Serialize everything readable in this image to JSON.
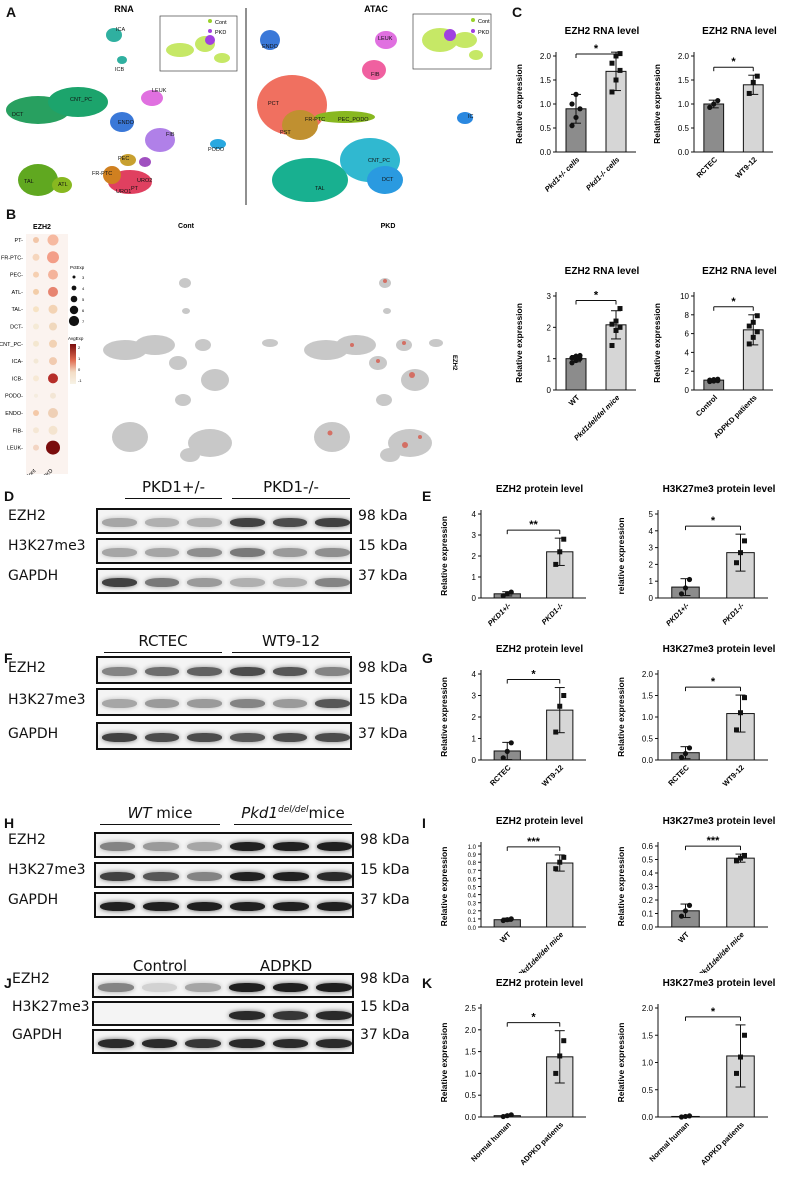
{
  "panels": {
    "A": {
      "letter": "A",
      "rna_title": "RNA",
      "atac_title": "ATAC",
      "legend": [
        "Cont",
        "PKD"
      ],
      "rna_clusters": [
        "ICA",
        "ICB",
        "DCT",
        "CNT_PC",
        "LEUK",
        "ENDO",
        "FIB",
        "PODO",
        "PEC",
        "URO1",
        "URO2",
        "FR-PTC",
        "PT",
        "TAL",
        "ATL"
      ],
      "atac_clusters": [
        "ENDO",
        "LEUK",
        "FIB",
        "PCT",
        "FR-PTC",
        "PST",
        "PEC_PODO",
        "IC",
        "CNT_PC",
        "TAL",
        "DCT"
      ]
    },
    "B": {
      "letter": "B",
      "gene": "EZH2",
      "rows": [
        "PT",
        "FR-PTC",
        "PEC",
        "ATL",
        "TAL",
        "DCT",
        "CNT_PC",
        "ICA",
        "ICB",
        "PODO",
        "ENDO",
        "FIB",
        "LEUK"
      ],
      "cols": [
        "Cont",
        "PKD"
      ],
      "pct_legend_title": "PctExp",
      "pct_ticks": [
        "3",
        "4",
        "5",
        "6",
        "7"
      ],
      "avg_legend_title": "AvgExp",
      "avg_ticks": [
        "2",
        "1",
        "0",
        "-1"
      ],
      "umap_cont": "Cont",
      "umap_pkd": "PKD",
      "umap_side": "EZH2"
    },
    "C": {
      "letter": "C"
    },
    "D": {
      "letter": "D",
      "groups": [
        "PKD1+/-",
        "PKD1-/-"
      ],
      "rows": [
        "EZH2",
        "H3K27me3",
        "GAPDH"
      ],
      "kda": [
        "98 kDa",
        "15 kDa",
        "37 kDa"
      ]
    },
    "E": {
      "letter": "E"
    },
    "F": {
      "letter": "F",
      "groups": [
        "RCTEC",
        "WT9-12"
      ],
      "rows": [
        "EZH2",
        "H3K27me3",
        "GAPDH"
      ],
      "kda": [
        "98 kDa",
        "15 kDa",
        "37 kDa"
      ]
    },
    "G": {
      "letter": "G"
    },
    "H": {
      "letter": "H",
      "groups": [
        "WT mice",
        "Pkd1del/delmice"
      ],
      "rows": [
        "EZH2",
        "H3K27me3",
        "GAPDH"
      ],
      "kda": [
        "98 kDa",
        "15 kDa",
        "37 kDa"
      ]
    },
    "I": {
      "letter": "I"
    },
    "J": {
      "letter": "J",
      "groups": [
        "Control",
        "ADPKD"
      ],
      "rows": [
        "EZH2",
        "H3K27me3",
        "GAPDH"
      ],
      "kda": [
        "98 kDa",
        "15 kDa",
        "37 kDa"
      ]
    },
    "K": {
      "letter": "K"
    }
  },
  "chart_data": [
    {
      "id": "C1",
      "type": "bar",
      "title": "EZH2 RNA level",
      "ylabel": "Relative expression",
      "ylim": [
        0,
        2.0
      ],
      "yticks": [
        0.0,
        0.5,
        1.0,
        1.5,
        2.0
      ],
      "categories": [
        "Pkd1+/- cells",
        "Pkd1-/- cells"
      ],
      "values": [
        0.9,
        1.68
      ],
      "errors": [
        0.3,
        0.4
      ],
      "points": [
        [
          0.55,
          0.72,
          0.9,
          1.0,
          1.2
        ],
        [
          1.25,
          1.5,
          1.7,
          1.85,
          2.0,
          2.05
        ]
      ],
      "significance": "*",
      "colors": [
        "#8c8c8c",
        "#d6d6d6"
      ]
    },
    {
      "id": "C2",
      "type": "bar",
      "title": "EZH2 RNA level",
      "ylabel": "Relative expression",
      "ylim": [
        0,
        2.0
      ],
      "yticks": [
        0.0,
        0.5,
        1.0,
        1.5,
        2.0
      ],
      "categories": [
        "RCTEC",
        "WT9-12"
      ],
      "values": [
        1.0,
        1.4
      ],
      "errors": [
        0.08,
        0.2
      ],
      "points": [
        [
          0.93,
          1.0,
          1.07
        ],
        [
          1.22,
          1.45,
          1.58
        ]
      ],
      "significance": "*",
      "colors": [
        "#8c8c8c",
        "#d6d6d6"
      ]
    },
    {
      "id": "C3",
      "type": "bar",
      "title": "EZH2 RNA level",
      "ylabel": "Relative expression",
      "ylim": [
        0,
        3
      ],
      "yticks": [
        0,
        1,
        2,
        3
      ],
      "categories": [
        "WT",
        "Pkd1del/del mice"
      ],
      "values": [
        1.0,
        2.08
      ],
      "errors": [
        0.1,
        0.45
      ],
      "points": [
        [
          0.87,
          0.94,
          1.0,
          1.03,
          1.08,
          1.1
        ],
        [
          1.42,
          1.9,
          2.0,
          2.1,
          2.2,
          2.6
        ]
      ],
      "significance": "*",
      "colors": [
        "#8c8c8c",
        "#d6d6d6"
      ]
    },
    {
      "id": "C4",
      "type": "bar",
      "title": "EZH2 RNA level",
      "ylabel": "Relative expression",
      "ylim": [
        0,
        10
      ],
      "yticks": [
        0,
        2,
        4,
        6,
        8,
        10
      ],
      "categories": [
        "Control",
        "ADPKD patients"
      ],
      "values": [
        1.05,
        6.4
      ],
      "errors": [
        0.12,
        1.6
      ],
      "points": [
        [
          0.9,
          0.95,
          1.0,
          1.05,
          1.1,
          1.15
        ],
        [
          4.9,
          5.6,
          6.2,
          6.8,
          7.2,
          7.9
        ]
      ],
      "significance": "*",
      "colors": [
        "#8c8c8c",
        "#d6d6d6"
      ]
    },
    {
      "id": "E1",
      "type": "bar",
      "title": "EZH2 protein level",
      "ylabel": "Relative expression",
      "ylim": [
        0,
        4
      ],
      "yticks": [
        0,
        1,
        2,
        3,
        4
      ],
      "categories": [
        "PKD1+/-",
        "PKD1-/-"
      ],
      "values": [
        0.2,
        2.2
      ],
      "errors": [
        0.1,
        0.65
      ],
      "points": [
        [
          0.1,
          0.2,
          0.28
        ],
        [
          1.6,
          2.2,
          2.8
        ]
      ],
      "significance": "**",
      "colors": [
        "#8c8c8c",
        "#d6d6d6"
      ]
    },
    {
      "id": "E2",
      "type": "bar",
      "title": "H3K27me3 protein level",
      "ylabel": "relative expression",
      "ylim": [
        0,
        5
      ],
      "yticks": [
        0,
        1,
        2,
        3,
        4,
        5
      ],
      "categories": [
        "PKD1+/-",
        "PKD1-/-"
      ],
      "values": [
        0.65,
        2.7
      ],
      "errors": [
        0.5,
        1.1
      ],
      "points": [
        [
          0.25,
          0.6,
          1.1
        ],
        [
          2.1,
          2.7,
          3.4
        ]
      ],
      "significance": "*",
      "colors": [
        "#8c8c8c",
        "#d6d6d6"
      ]
    },
    {
      "id": "G1",
      "type": "bar",
      "title": "EZH2 protein level",
      "ylabel": "Relative expression",
      "ylim": [
        0,
        4
      ],
      "yticks": [
        0,
        1,
        2,
        3,
        4
      ],
      "categories": [
        "RCTEC",
        "WT9-12"
      ],
      "values": [
        0.42,
        2.32
      ],
      "errors": [
        0.4,
        1.05
      ],
      "points": [
        [
          0.1,
          0.4,
          0.8
        ],
        [
          1.3,
          2.5,
          3.0
        ]
      ],
      "significance": "*",
      "colors": [
        "#8c8c8c",
        "#d6d6d6"
      ]
    },
    {
      "id": "G2",
      "type": "bar",
      "title": "H3K27me3 protein level",
      "ylabel": "Relative expression",
      "ylim": [
        0,
        2.0
      ],
      "yticks": [
        0.0,
        0.5,
        1.0,
        1.5,
        2.0
      ],
      "categories": [
        "RCTEC",
        "WT9-12"
      ],
      "values": [
        0.17,
        1.08
      ],
      "errors": [
        0.14,
        0.43
      ],
      "points": [
        [
          0.06,
          0.15,
          0.28
        ],
        [
          0.7,
          1.1,
          1.45
        ]
      ],
      "significance": "*",
      "colors": [
        "#8c8c8c",
        "#d6d6d6"
      ]
    },
    {
      "id": "I1",
      "type": "bar",
      "title": "EZH2 protein level",
      "ylabel": "Relative expression",
      "ylim": [
        0,
        1.0
      ],
      "yticks": [
        0.0,
        0.1,
        0.2,
        0.3,
        0.4,
        0.5,
        0.6,
        0.7,
        0.8,
        0.9,
        1.0
      ],
      "categories": [
        "WT",
        "Pkd1del/del mice"
      ],
      "values": [
        0.09,
        0.79
      ],
      "errors": [
        0.02,
        0.1
      ],
      "points": [
        [
          0.08,
          0.09,
          0.1
        ],
        [
          0.72,
          0.8,
          0.86
        ]
      ],
      "significance": "***",
      "colors": [
        "#8c8c8c",
        "#d6d6d6"
      ]
    },
    {
      "id": "I2",
      "type": "bar",
      "title": "H3K27me3 protein level",
      "ylabel": "Relative expression",
      "ylim": [
        0,
        0.6
      ],
      "yticks": [
        0.0,
        0.1,
        0.2,
        0.3,
        0.4,
        0.5,
        0.6
      ],
      "categories": [
        "WT",
        "Pkd1del/del mice"
      ],
      "values": [
        0.12,
        0.51
      ],
      "errors": [
        0.05,
        0.03
      ],
      "points": [
        [
          0.08,
          0.12,
          0.16
        ],
        [
          0.49,
          0.51,
          0.53
        ]
      ],
      "significance": "***",
      "colors": [
        "#8c8c8c",
        "#d6d6d6"
      ]
    },
    {
      "id": "K1",
      "type": "bar",
      "title": "EZH2 protein level",
      "ylabel": "Relative expression",
      "ylim": [
        0,
        2.5
      ],
      "yticks": [
        0.0,
        0.5,
        1.0,
        1.5,
        2.0,
        2.5
      ],
      "categories": [
        "Normal human",
        "ADPKD patients"
      ],
      "values": [
        0.03,
        1.38
      ],
      "errors": [
        0.02,
        0.6
      ],
      "points": [
        [
          0.01,
          0.03,
          0.05
        ],
        [
          1.0,
          1.4,
          1.75
        ]
      ],
      "significance": "*",
      "colors": [
        "#8c8c8c",
        "#d6d6d6"
      ]
    },
    {
      "id": "K2",
      "type": "bar",
      "title": "H3K27me3 protein level",
      "ylabel": "Relative expression",
      "ylim": [
        0,
        2.0
      ],
      "yticks": [
        0.0,
        0.5,
        1.0,
        1.5,
        2.0
      ],
      "categories": [
        "Normal human",
        "ADPKD patients"
      ],
      "values": [
        0.01,
        1.12
      ],
      "errors": [
        0.01,
        0.57
      ],
      "points": [
        [
          0.0,
          0.01,
          0.02
        ],
        [
          0.8,
          1.1,
          1.5
        ]
      ],
      "significance": "*",
      "colors": [
        "#8c8c8c",
        "#d6d6d6"
      ]
    }
  ]
}
